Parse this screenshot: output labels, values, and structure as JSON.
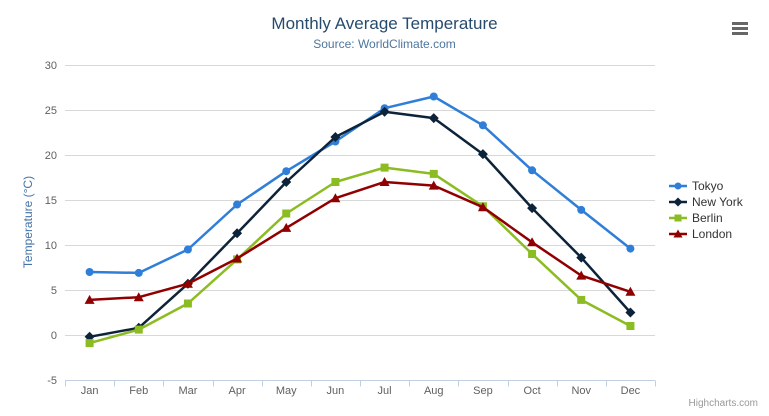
{
  "chart_data": {
    "type": "line",
    "title": "Monthly Average Temperature",
    "subtitle": "Source: WorldClimate.com",
    "xlabel": "",
    "ylabel": "Temperature (°C)",
    "categories": [
      "Jan",
      "Feb",
      "Mar",
      "Apr",
      "May",
      "Jun",
      "Jul",
      "Aug",
      "Sep",
      "Oct",
      "Nov",
      "Dec"
    ],
    "ylim": [
      -5,
      30
    ],
    "yticks": [
      30,
      25,
      20,
      15,
      10,
      5,
      0,
      -5
    ],
    "grid": true,
    "legend_position": "right",
    "series": [
      {
        "name": "Tokyo",
        "color": "#2f7ed8",
        "marker": "circle",
        "values": [
          7.0,
          6.9,
          9.5,
          14.5,
          18.2,
          21.5,
          25.2,
          26.5,
          23.3,
          18.3,
          13.9,
          9.6
        ]
      },
      {
        "name": "New York",
        "color": "#0d233a",
        "marker": "diamond",
        "values": [
          -0.2,
          0.8,
          5.7,
          11.3,
          17.0,
          22.0,
          24.8,
          24.1,
          20.1,
          14.1,
          8.6,
          2.5
        ]
      },
      {
        "name": "Berlin",
        "color": "#8bbc21",
        "marker": "square",
        "values": [
          -0.9,
          0.6,
          3.5,
          8.4,
          13.5,
          17.0,
          18.6,
          17.9,
          14.3,
          9.0,
          3.9,
          1.0
        ]
      },
      {
        "name": "London",
        "color": "#910000",
        "marker": "triangle",
        "values": [
          3.9,
          4.2,
          5.7,
          8.5,
          11.9,
          15.2,
          17.0,
          16.6,
          14.2,
          10.3,
          6.6,
          4.8
        ]
      }
    ],
    "colors": {
      "title": "#274b6d",
      "subtitle": "#4d759e",
      "axis_title": "#4572a7",
      "axis_labels": "#606060",
      "gridline": "#d8d8d8",
      "axis_line": "#c0d0e0",
      "legend_text": "#333333",
      "credits_text": "#999999"
    },
    "credits": "Highcharts.com"
  },
  "menu": {
    "context_button": "chart-context-menu"
  }
}
